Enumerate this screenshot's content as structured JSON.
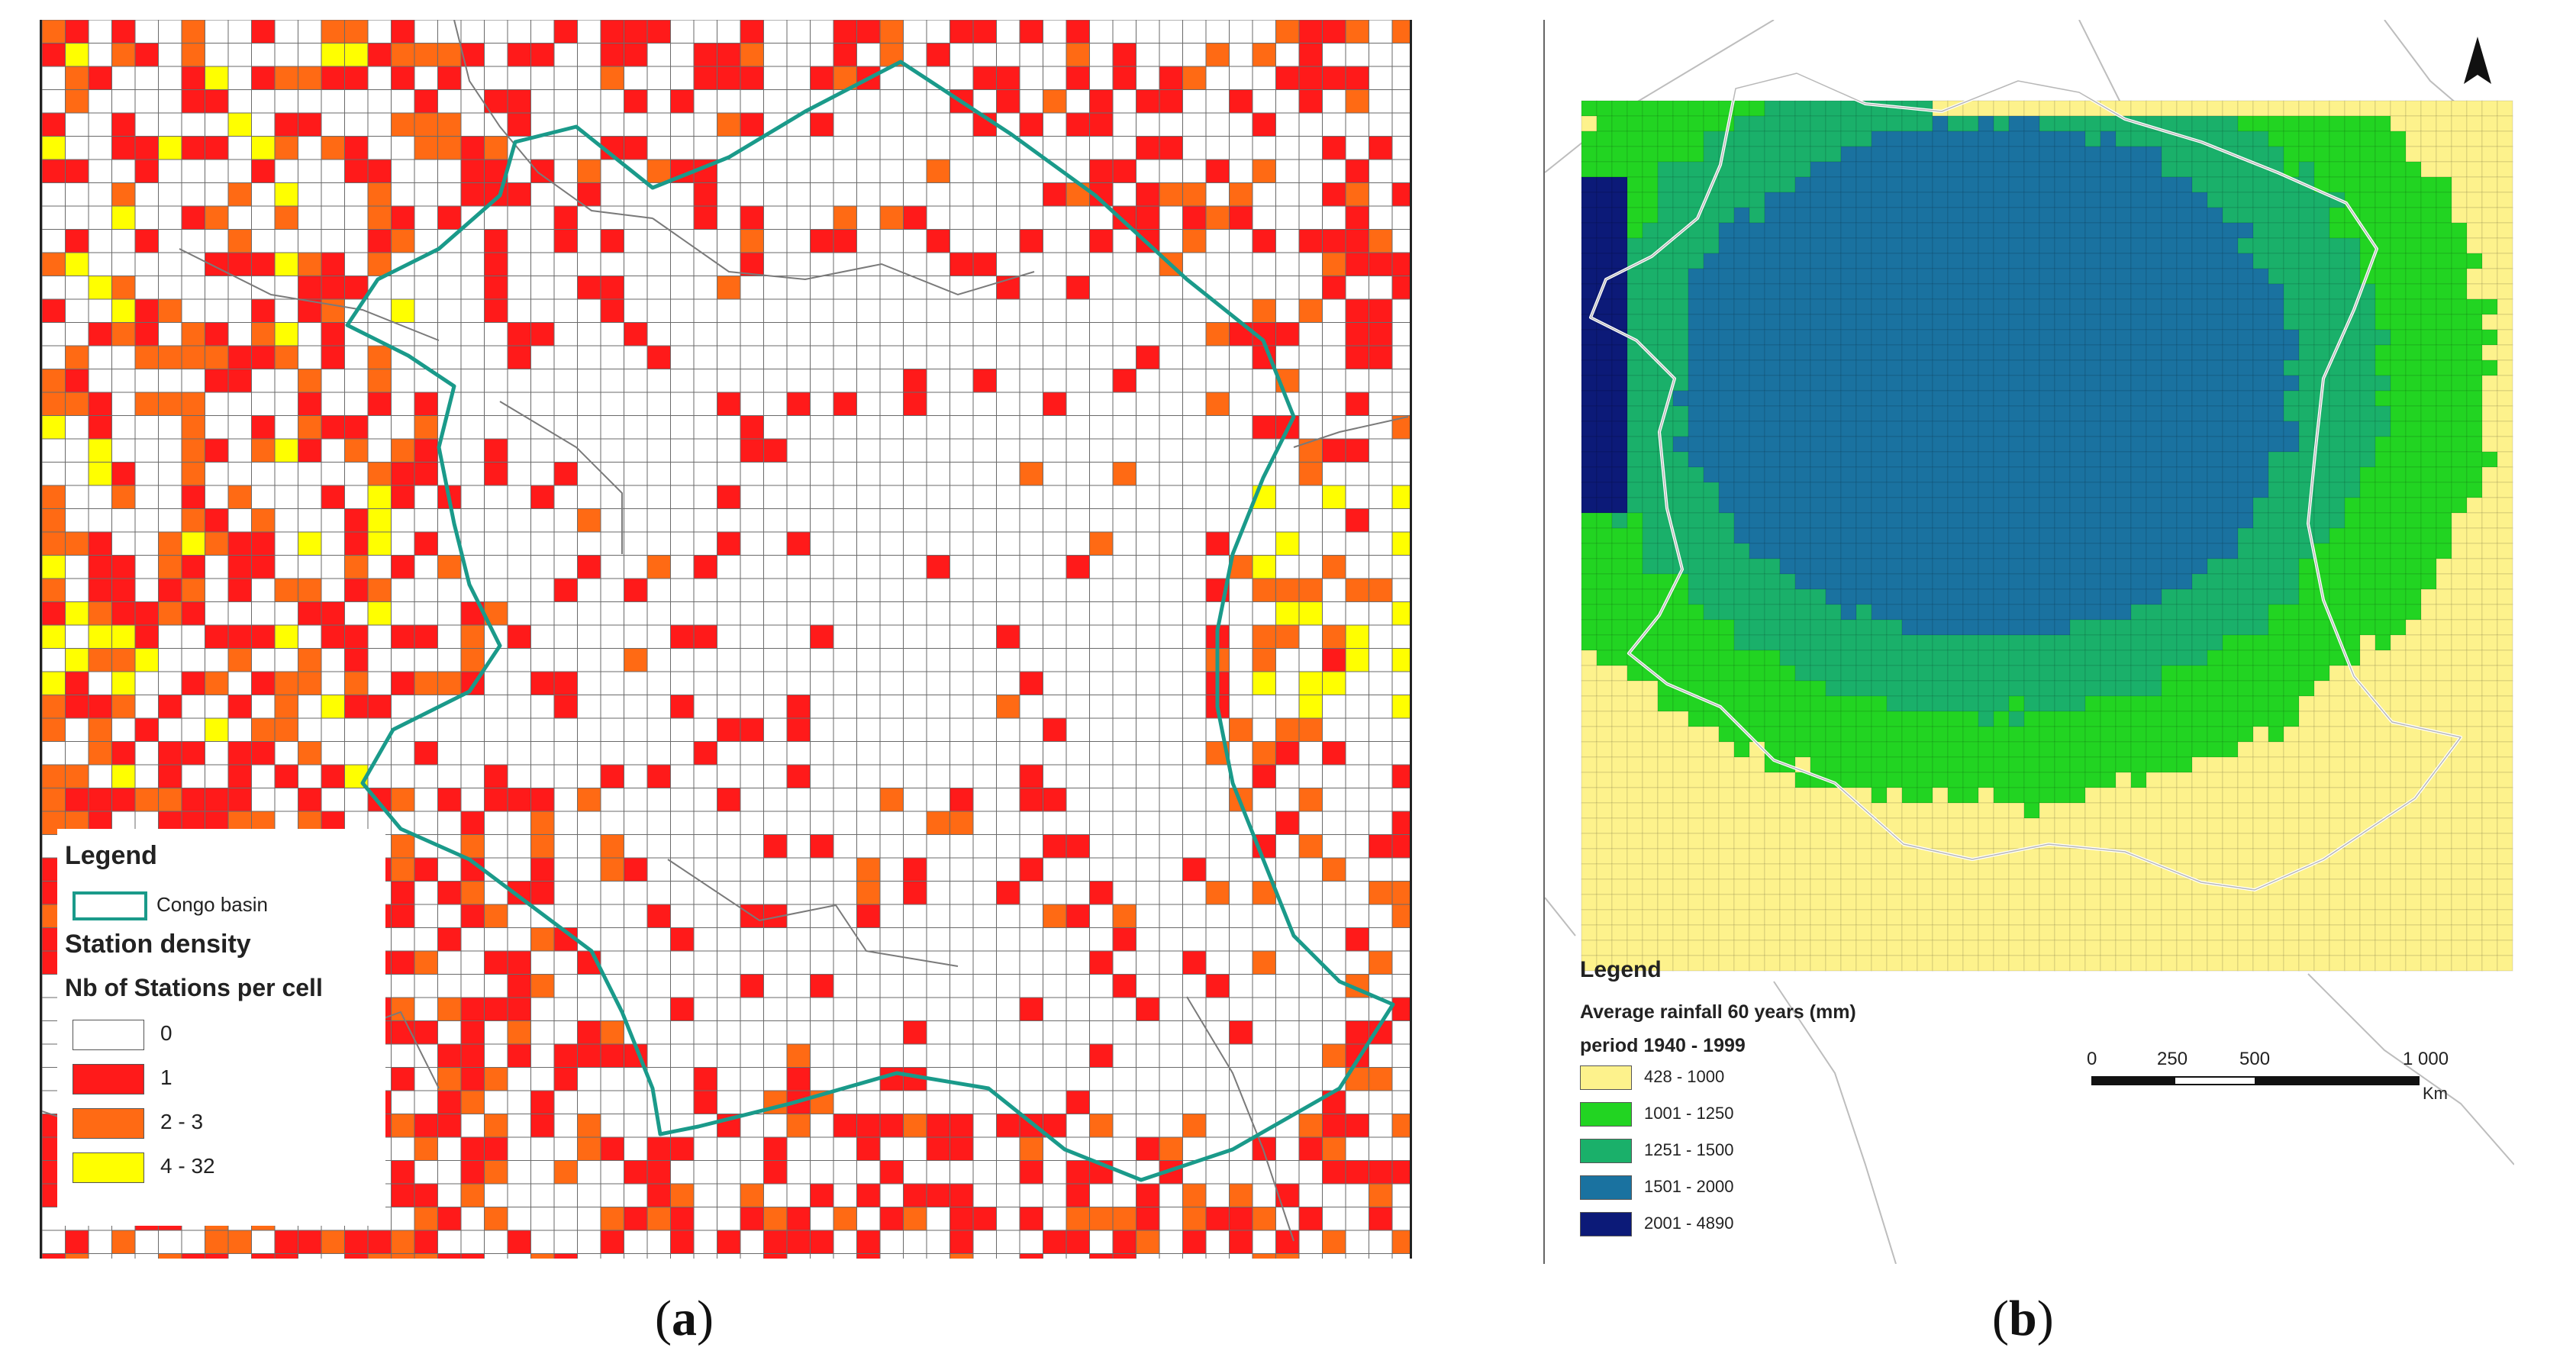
{
  "panel_a": {
    "caption_open": "(",
    "caption_letter": "a",
    "caption_close": ")",
    "legend": {
      "title": "Legend",
      "basin_label": "Congo basin",
      "density_title": "Station density",
      "sub_title": "Nb of Stations per cell",
      "classes": [
        {
          "label": "0",
          "color": "#ffffff"
        },
        {
          "label": "1",
          "color": "#ff1a1a"
        },
        {
          "label": "2 - 3",
          "color": "#ff6a14"
        },
        {
          "label": "4 - 32",
          "color": "#ffff00"
        }
      ]
    },
    "basin_color": "#1a9a8a"
  },
  "panel_b": {
    "caption_open": "(",
    "caption_letter": "b",
    "caption_close": ")",
    "legend": {
      "title": "Legend",
      "sub_title": "Average rainfall 60 years (mm)",
      "period": "period 1940 - 1999",
      "classes": [
        {
          "label": "428 - 1000",
          "color": "#fdf28c"
        },
        {
          "label": "1001 - 1250",
          "color": "#22d422"
        },
        {
          "label": "1251 - 1500",
          "color": "#1ab06a"
        },
        {
          "label": "1501 - 2000",
          "color": "#1a72a0"
        },
        {
          "label": "2001 - 4890",
          "color": "#0c1a78"
        }
      ]
    },
    "scale": {
      "ticks": [
        "0",
        "250",
        "500",
        "1 000"
      ],
      "unit": "Km"
    },
    "north_arrow": "north-arrow-icon"
  }
}
